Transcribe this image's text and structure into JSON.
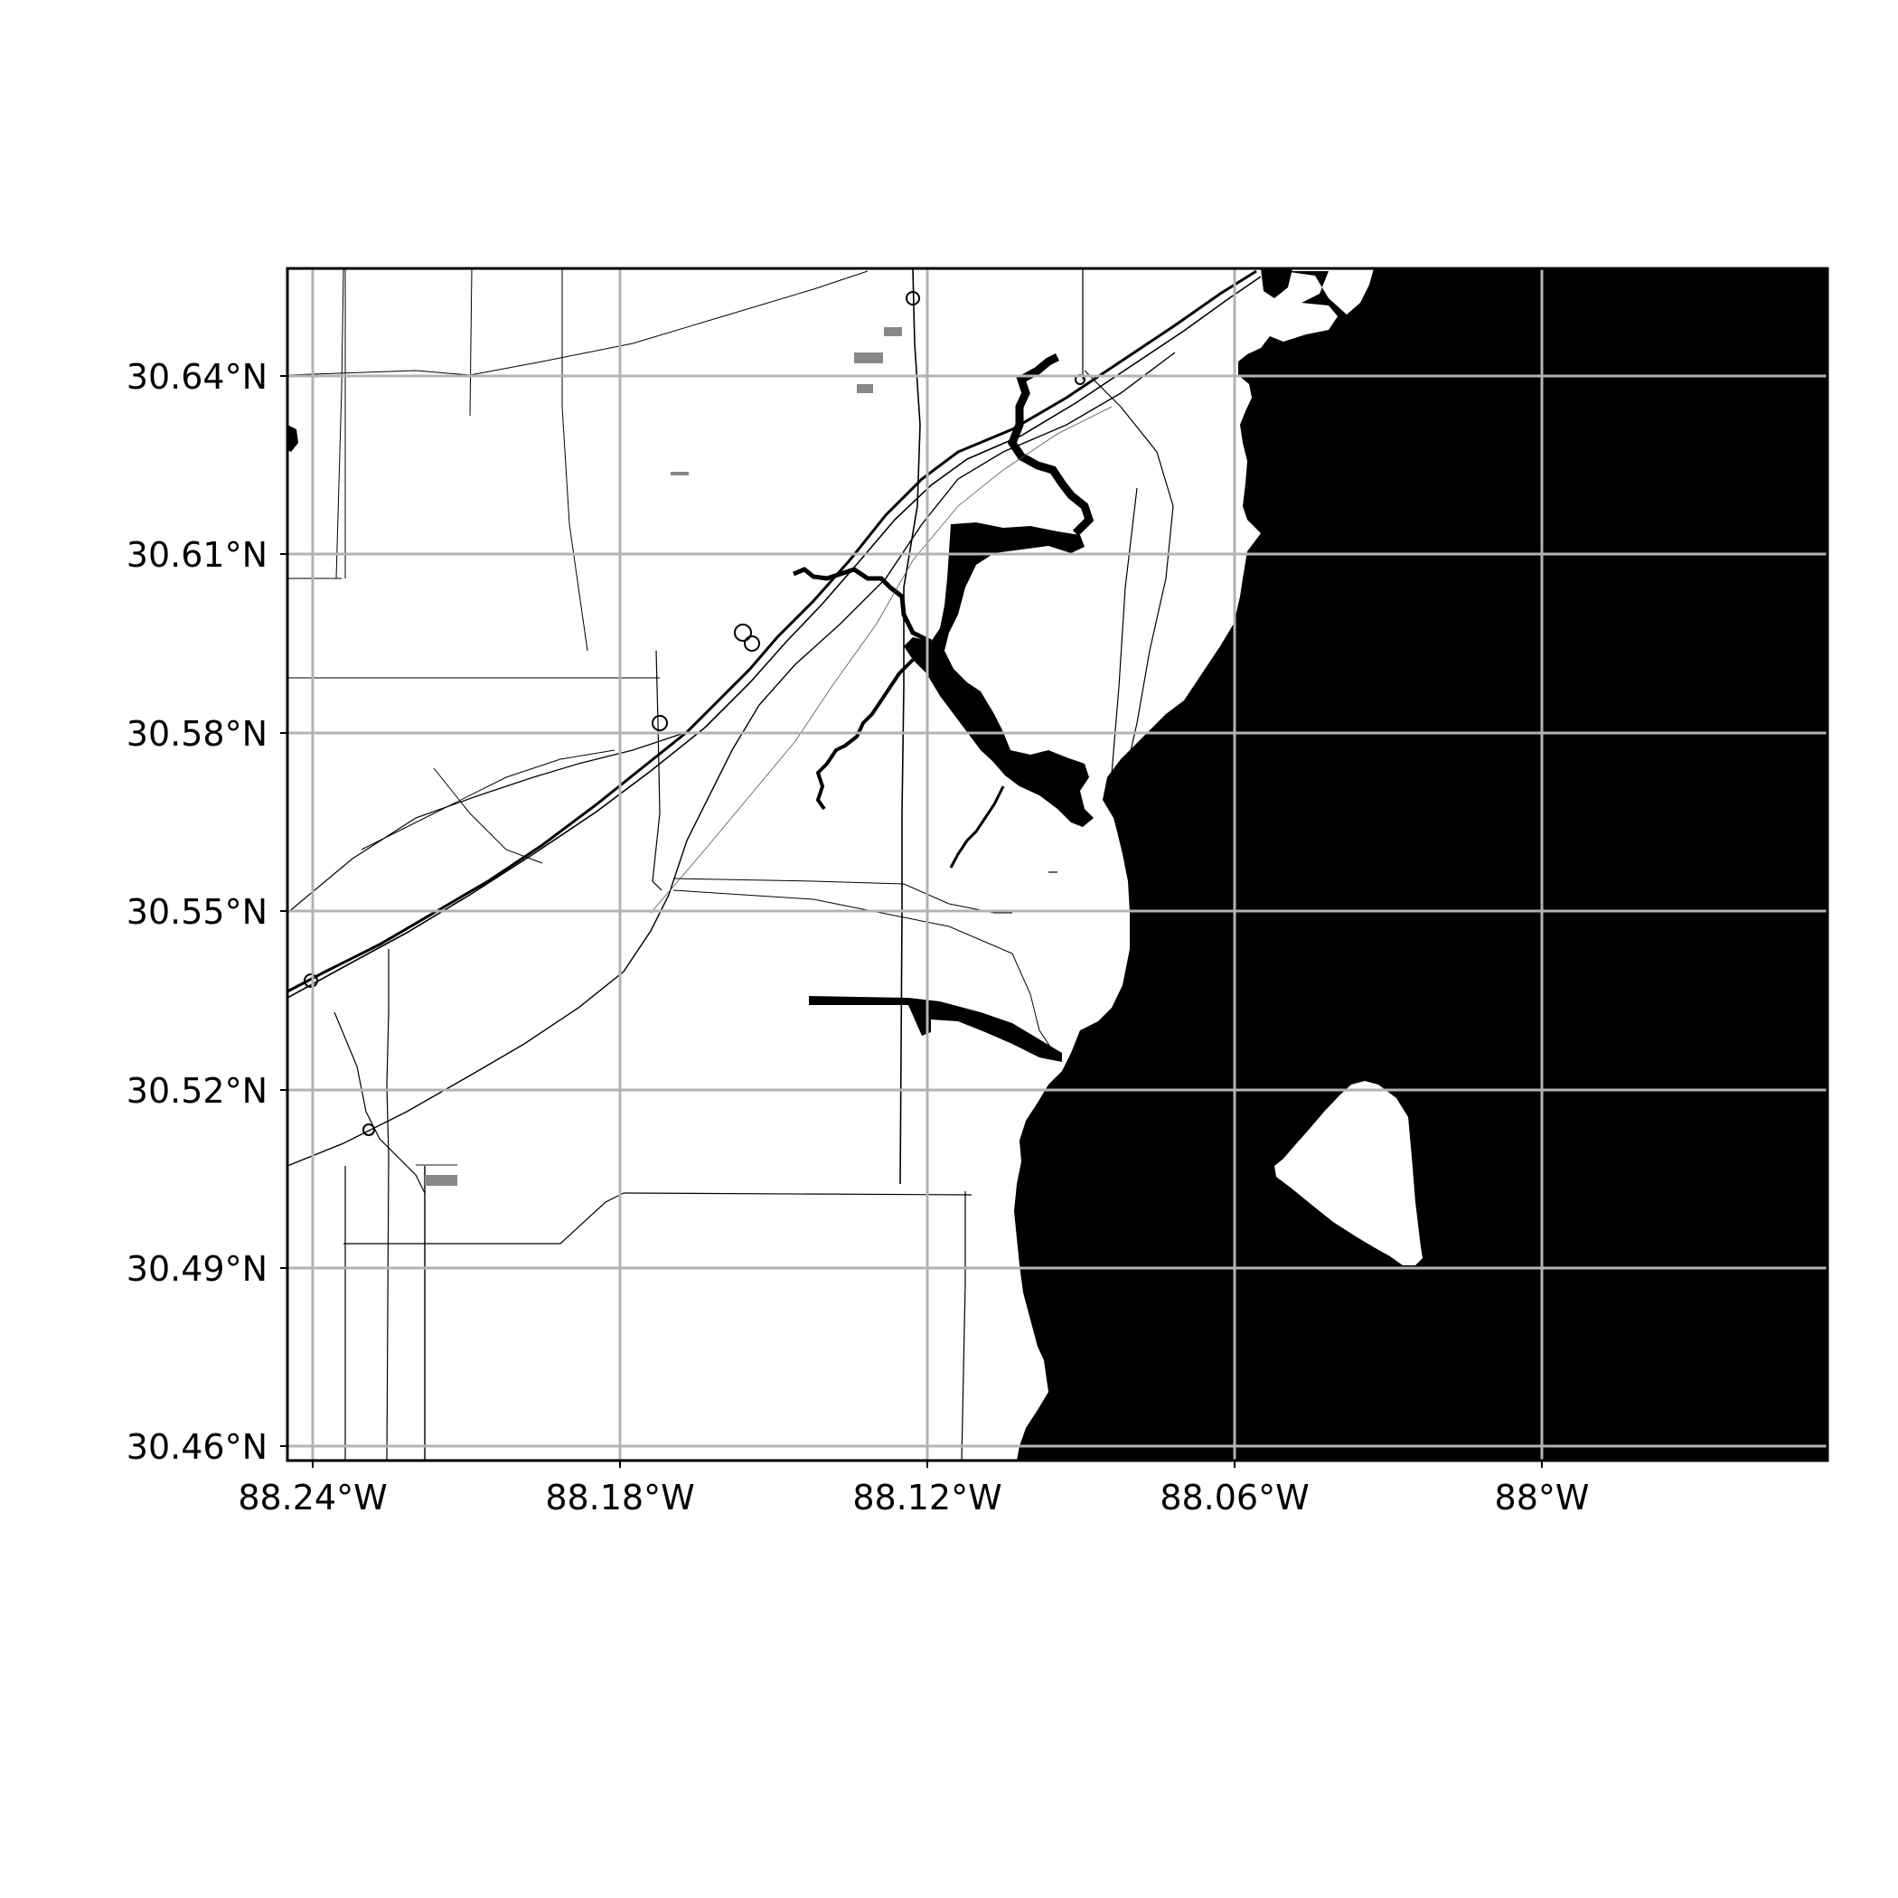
{
  "map": {
    "lat_ticks": [
      "30.64°N",
      "30.61°N",
      "30.58°N",
      "30.55°N",
      "30.52°N",
      "30.49°N",
      "30.46°N"
    ],
    "lon_ticks": [
      "88.24°W",
      "88.18°W",
      "88.12°W",
      "88.06°W",
      "88°W"
    ],
    "lat_values": [
      30.64,
      30.61,
      30.58,
      30.55,
      30.52,
      30.49,
      30.46
    ],
    "lon_values": [
      -88.24,
      -88.18,
      -88.12,
      -88.06,
      -88.0
    ],
    "extent": {
      "lon_min": -88.245,
      "lon_max": -87.945,
      "lat_min": 30.458,
      "lat_max": 30.658
    },
    "colors": {
      "land": "#ffffff",
      "water": "#000000",
      "grid": "#b3b3b3",
      "road": "#000000",
      "frame": "#000000"
    },
    "grid": true
  }
}
